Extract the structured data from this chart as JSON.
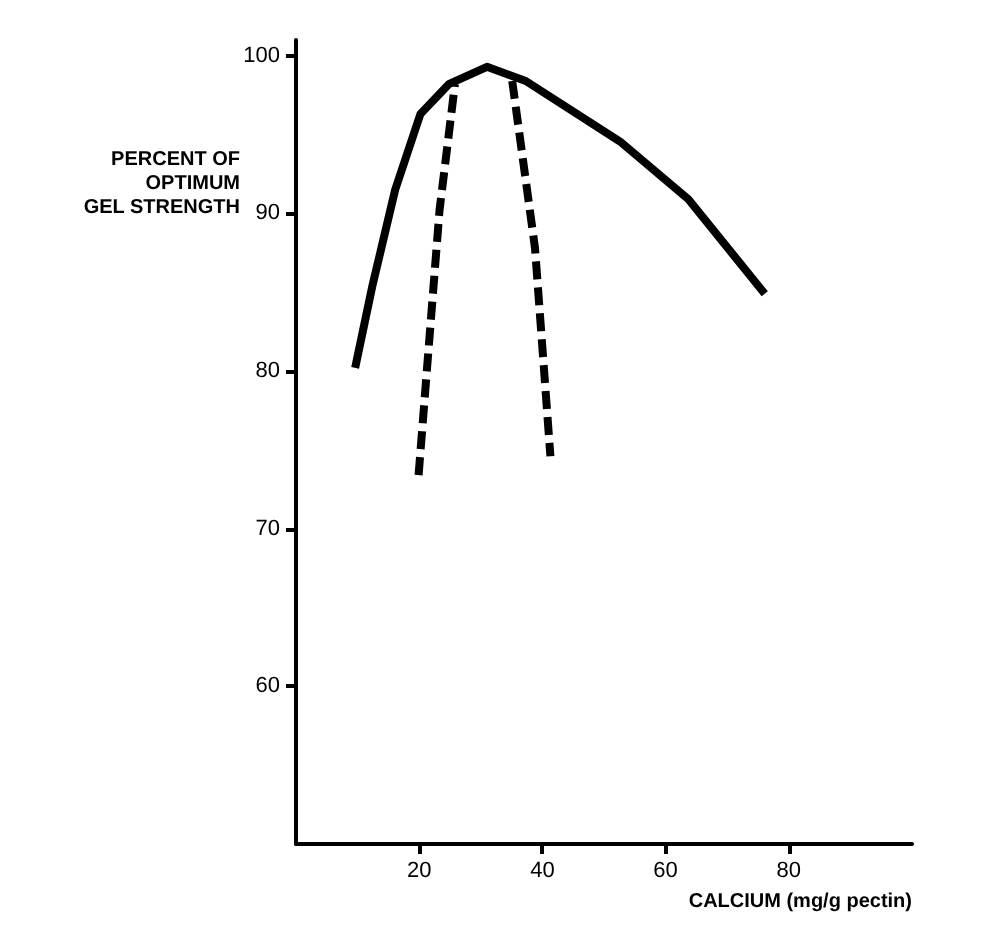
{
  "chart_data": {
    "type": "line",
    "xlabel": "CALCIUM (mg/g pectin)",
    "ylabel": "PERCENT OF\nOPTIMUM\nGEL STRENGTH",
    "xlim": [
      0,
      100
    ],
    "ylim": [
      50,
      101
    ],
    "xticks": [
      20,
      40,
      60,
      80
    ],
    "yticks": [
      60,
      70,
      80,
      90,
      100
    ],
    "grid": false,
    "marker": "none",
    "series": [
      {
        "color": "#000000",
        "line_style": "solid",
        "x": [
          9.6,
          12.4,
          16.1,
          20.2,
          24.8,
          31,
          37.3,
          52.8,
          63.7,
          76.1
        ],
        "values": [
          80.2,
          85.4,
          91.5,
          96.3,
          98.2,
          99.3,
          98.4,
          94.5,
          90.9,
          84.9
        ]
      },
      {
        "color": "#000000",
        "line_style": "dashed",
        "x": [
          19.9,
          23.3,
          25.8
        ],
        "values": [
          73.4,
          90.2,
          98.2
        ]
      },
      {
        "color": "#000000",
        "line_style": "dashed",
        "x": [
          35.1,
          38.8,
          41.3
        ],
        "values": [
          98.4,
          87.8,
          74.6
        ]
      }
    ]
  }
}
